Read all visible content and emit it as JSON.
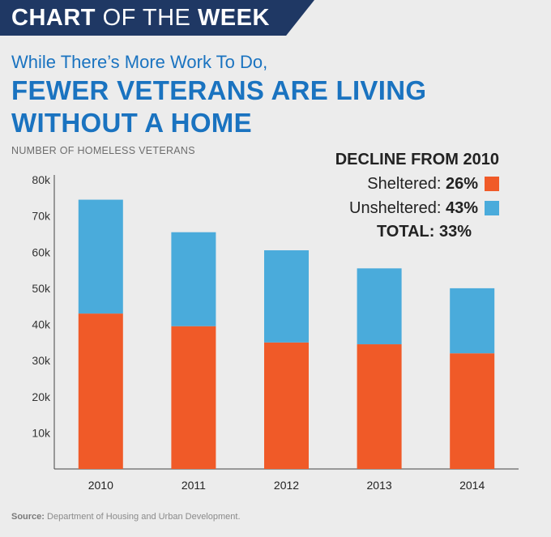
{
  "banner": {
    "bold1": "CHART",
    "light": "OF THE",
    "bold2": "WEEK"
  },
  "subtitle": "While There’s More Work To Do,",
  "title_line1": "FEWER VETERANS ARE LIVING",
  "title_line2": "WITHOUT A HOME",
  "legend": {
    "heading": "DECLINE FROM 2010",
    "sheltered_label": "Sheltered:",
    "sheltered_value": "26%",
    "unsheltered_label": "Unsheltered:",
    "unsheltered_value": "43%",
    "total_label": "TOTAL:",
    "total_value": "33%"
  },
  "source_label": "Source:",
  "source_text": "Department of Housing and Urban Development.",
  "colors": {
    "sheltered": "#f05a28",
    "unsheltered": "#4aabdb",
    "brand": "#1f3864",
    "title": "#1a73c0"
  },
  "chart_data": {
    "type": "bar",
    "stacked": true,
    "ylabel": "NUMBER OF HOMELESS VETERANS",
    "xlabel": "",
    "categories": [
      "2010",
      "2011",
      "2012",
      "2013",
      "2014"
    ],
    "series": [
      {
        "name": "Sheltered",
        "values": [
          43000,
          39500,
          35000,
          34500,
          32000
        ]
      },
      {
        "name": "Unsheltered",
        "values": [
          31500,
          26000,
          25500,
          21000,
          18000
        ]
      }
    ],
    "ylim": [
      0,
      80000
    ],
    "yticks": [
      10000,
      20000,
      30000,
      40000,
      50000,
      60000,
      70000,
      80000
    ],
    "ytick_labels": [
      "10k",
      "20k",
      "30k",
      "40k",
      "50k",
      "60k",
      "70k",
      "80k"
    ]
  }
}
